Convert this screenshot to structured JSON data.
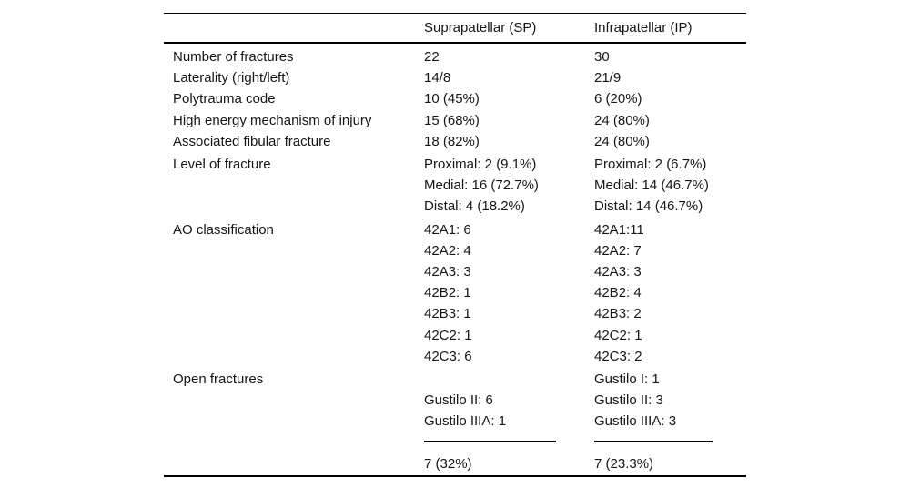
{
  "table": {
    "headers": [
      "",
      "Suprapatellar (SP)",
      "Infrapatellar (IP)"
    ],
    "groups": [
      {
        "label": "Number of fractures",
        "sp": [
          "22"
        ],
        "ip": [
          "30"
        ]
      },
      {
        "label": "Laterality (right/left)",
        "sp": [
          "14/8"
        ],
        "ip": [
          "21/9"
        ]
      },
      {
        "label": "Polytrauma code",
        "sp": [
          "10 (45%)"
        ],
        "ip": [
          "6 (20%)"
        ]
      },
      {
        "label": "High energy mechanism of injury",
        "sp": [
          "15 (68%)"
        ],
        "ip": [
          "24 (80%)"
        ]
      },
      {
        "label": "Associated fibular fracture",
        "sp": [
          "18 (82%)"
        ],
        "ip": [
          "24 (80%)"
        ]
      },
      {
        "label": "Level of fracture",
        "sp": [
          "Proximal: 2 (9.1%)",
          "Medial: 16 (72.7%)",
          "Distal: 4 (18.2%)"
        ],
        "ip": [
          "Proximal: 2 (6.7%)",
          "Medial: 14 (46.7%)",
          "Distal: 14 (46.7%)"
        ]
      },
      {
        "label": "AO classification",
        "sp": [
          "42A1: 6",
          "42A2: 4",
          "42A3: 3",
          "42B2: 1",
          "42B3: 1",
          "42C2: 1",
          "42C3: 6"
        ],
        "ip": [
          "42A1:11",
          "42A2: 7",
          "42A3: 3",
          "42B2: 4",
          "42B3: 2",
          "42C2: 1",
          "42C3: 2"
        ]
      },
      {
        "label": "Open fractures",
        "sp": [
          "",
          "Gustilo II: 6",
          "Gustilo IIIA: 1",
          "---",
          "7 (32%)"
        ],
        "ip": [
          "Gustilo I: 1",
          "Gustilo II: 3",
          "Gustilo IIIA: 3",
          "---",
          "7 (23.3%)"
        ]
      }
    ],
    "colors": {
      "text": "#161616",
      "rule": "#000000",
      "background": "#ffffff"
    }
  }
}
